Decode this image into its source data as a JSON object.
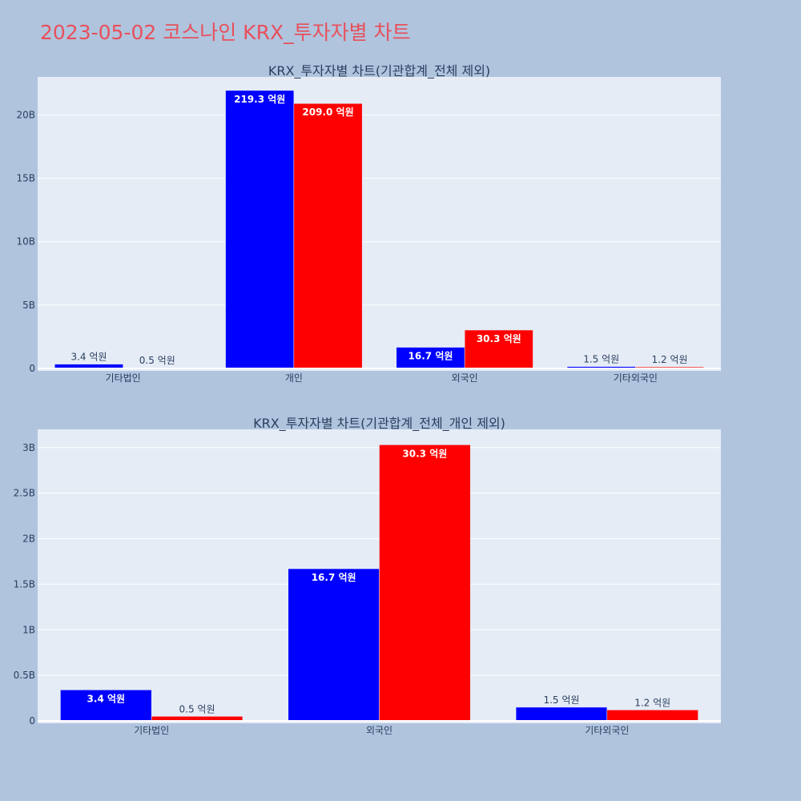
{
  "page": {
    "title": "2023-05-02 코스나인 KRX_투자자별 차트",
    "title_color": "#e8505b",
    "background": "#b0c4de",
    "plot_background": "#e5ecf6"
  },
  "colors": {
    "series_1": "#0000ff",
    "series_2": "#ff0000"
  },
  "chart_data": [
    {
      "type": "bar",
      "title": "KRX_투자자별 차트(기관합계_전체 제외)",
      "categories": [
        "기타법인",
        "개인",
        "외국인",
        "기타외국인"
      ],
      "series": [
        {
          "color": "#0000ff",
          "values": [
            340000000,
            21930000000,
            1670000000,
            150000000
          ],
          "labels": [
            "3.4 억원",
            "219.3 억원",
            "16.7 억원",
            "1.5 억원"
          ]
        },
        {
          "color": "#ff0000",
          "values": [
            50000000,
            20900000000,
            3030000000,
            120000000
          ],
          "labels": [
            "0.5 억원",
            "209.0 억원",
            "30.3 억원",
            "1.2 억원"
          ]
        }
      ],
      "yticks": [
        0,
        5000000000,
        10000000000,
        15000000000,
        20000000000
      ],
      "ytick_labels": [
        "0",
        "5B",
        "10B",
        "15B",
        "20B"
      ],
      "ylim": [
        0,
        23000000000
      ],
      "grid": true
    },
    {
      "type": "bar",
      "title": "KRX_투자자별 차트(기관합계_전체_개인 제외)",
      "categories": [
        "기타법인",
        "외국인",
        "기타외국인"
      ],
      "series": [
        {
          "color": "#0000ff",
          "values": [
            340000000,
            1670000000,
            150000000
          ],
          "labels": [
            "3.4 억원",
            "16.7 억원",
            "1.5 억원"
          ]
        },
        {
          "color": "#ff0000",
          "values": [
            50000000,
            3030000000,
            120000000
          ],
          "labels": [
            "0.5 억원",
            "30.3 억원",
            "1.2 억원"
          ]
        }
      ],
      "yticks": [
        0,
        500000000,
        1000000000,
        1500000000,
        2000000000,
        2500000000,
        3000000000
      ],
      "ytick_labels": [
        "0",
        "0.5B",
        "1B",
        "1.5B",
        "2B",
        "2.5B",
        "3B"
      ],
      "ylim": [
        0,
        3200000000
      ],
      "grid": true
    }
  ]
}
